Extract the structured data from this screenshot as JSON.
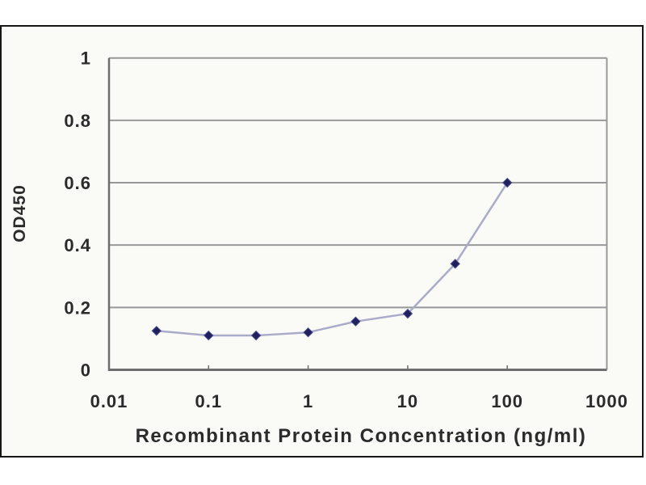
{
  "chart_data": {
    "type": "line",
    "x": [
      0.03,
      0.1,
      0.3,
      1,
      3,
      10,
      30,
      100
    ],
    "y": [
      0.125,
      0.11,
      0.11,
      0.12,
      0.155,
      0.18,
      0.34,
      0.6
    ],
    "xlabel": "Recombinant Protein Concentration (ng/ml)",
    "ylabel": "OD450",
    "x_scale": "log",
    "xlim": [
      0.01,
      1000
    ],
    "ylim": [
      0,
      1
    ],
    "x_ticks": [
      0.01,
      0.1,
      1,
      10,
      100,
      1000
    ],
    "x_tick_labels": [
      "0.01",
      "0.1",
      "1",
      "10",
      "100",
      "1000"
    ],
    "y_ticks": [
      0,
      0.2,
      0.4,
      0.6,
      0.8,
      1
    ],
    "y_tick_labels": [
      "0",
      "0.2",
      "0.4",
      "0.6",
      "0.8",
      "1"
    ],
    "grid": "horizontal",
    "legend": "none",
    "marker": "diamond",
    "colors": {
      "line": "#a9abc8",
      "marker": "#20205e",
      "grid": "#989898",
      "axis": "#6e6e6e",
      "tick_text": "#2b2b2b",
      "frame_border": "#161616",
      "frame_bg": "#fafaf7",
      "page_bg": "#ffffff"
    }
  }
}
